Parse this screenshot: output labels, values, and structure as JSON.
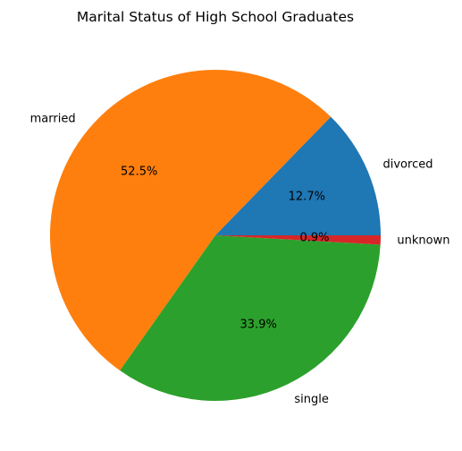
{
  "chart_data": {
    "type": "pie",
    "title": "Marital Status of High School Graduates",
    "slices": [
      {
        "label": "divorced",
        "percent": 12.7,
        "percent_label": "12.7%",
        "color": "#1f77b4"
      },
      {
        "label": "married",
        "percent": 52.5,
        "percent_label": "52.5%",
        "color": "#ff7f0e"
      },
      {
        "label": "single",
        "percent": 33.9,
        "percent_label": "33.9%",
        "color": "#2ca02c"
      },
      {
        "label": "unknown",
        "percent": 0.9,
        "percent_label": "0.9%",
        "color": "#d62728"
      }
    ],
    "start_angle_degrees": 0,
    "direction": "counterclockwise",
    "legend": "none"
  }
}
